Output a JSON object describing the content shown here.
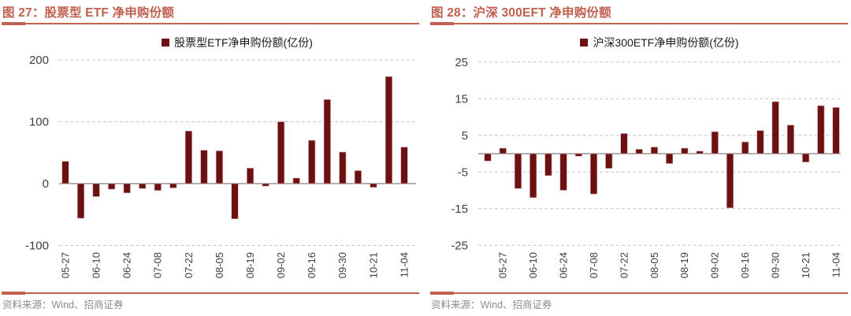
{
  "page": {
    "background": "#ffffff"
  },
  "colors": {
    "accent": "#C1604E",
    "bar": "#6B1111",
    "bar_edge": "#D4A9A9",
    "grid": "#C6C6C6",
    "axis": "#808080",
    "tick_text": "#404040",
    "legend_text": "#1a1a1a",
    "source_text": "#8C8C8C"
  },
  "figures": [
    {
      "title": "图 27：股票型 ETF 净申购份额",
      "source": "资料来源：Wind、招商证券"
    },
    {
      "title": "图 28：沪深 300EFT 净申购份额",
      "source": "资料来源：Wind、招商证券"
    }
  ],
  "chart_data": [
    {
      "type": "bar",
      "title": "图 27：股票型 ETF 净申购份额",
      "legend": "股票型ETF净申购份额(亿份)",
      "legend_position": "top",
      "grid": true,
      "ylim": [
        -100,
        200
      ],
      "yticks": [
        200,
        100,
        0,
        -100
      ],
      "tick_labels": [
        "05-27",
        "06-10",
        "06-24",
        "07-08",
        "07-22",
        "08-05",
        "08-19",
        "09-02",
        "09-16",
        "09-30",
        "10-21",
        "11-04"
      ],
      "tick_start_index": 0,
      "tick_step": 2,
      "values": [
        36,
        -56,
        -21,
        -9,
        -15,
        -8,
        -11,
        -7,
        85,
        54,
        53,
        -57,
        25,
        -4,
        100,
        9,
        70,
        136,
        51,
        21,
        -6,
        173,
        59
      ]
    },
    {
      "type": "bar",
      "title": "图 28：沪深 300EFT 净申购份额",
      "legend": "沪深300ETF净申购份额(亿份)",
      "legend_position": "top",
      "grid": true,
      "ylim": [
        -25,
        25
      ],
      "yticks": [
        25,
        15,
        5,
        -5,
        -15,
        -25
      ],
      "tick_labels": [
        "05-27",
        "06-10",
        "06-24",
        "07-08",
        "07-22",
        "08-05",
        "08-19",
        "09-02",
        "09-16",
        "09-30",
        "10-21",
        "11-04"
      ],
      "tick_start_index": 1,
      "tick_step": 2,
      "values": [
        -2,
        1.5,
        -9.5,
        -12,
        -6,
        -10,
        -0.7,
        -11,
        -4,
        5.5,
        1.2,
        1.8,
        -2.7,
        1.5,
        0.7,
        6,
        -14.8,
        3.2,
        6.3,
        14.2,
        7.8,
        -2.3,
        13.1,
        12.6
      ]
    }
  ]
}
